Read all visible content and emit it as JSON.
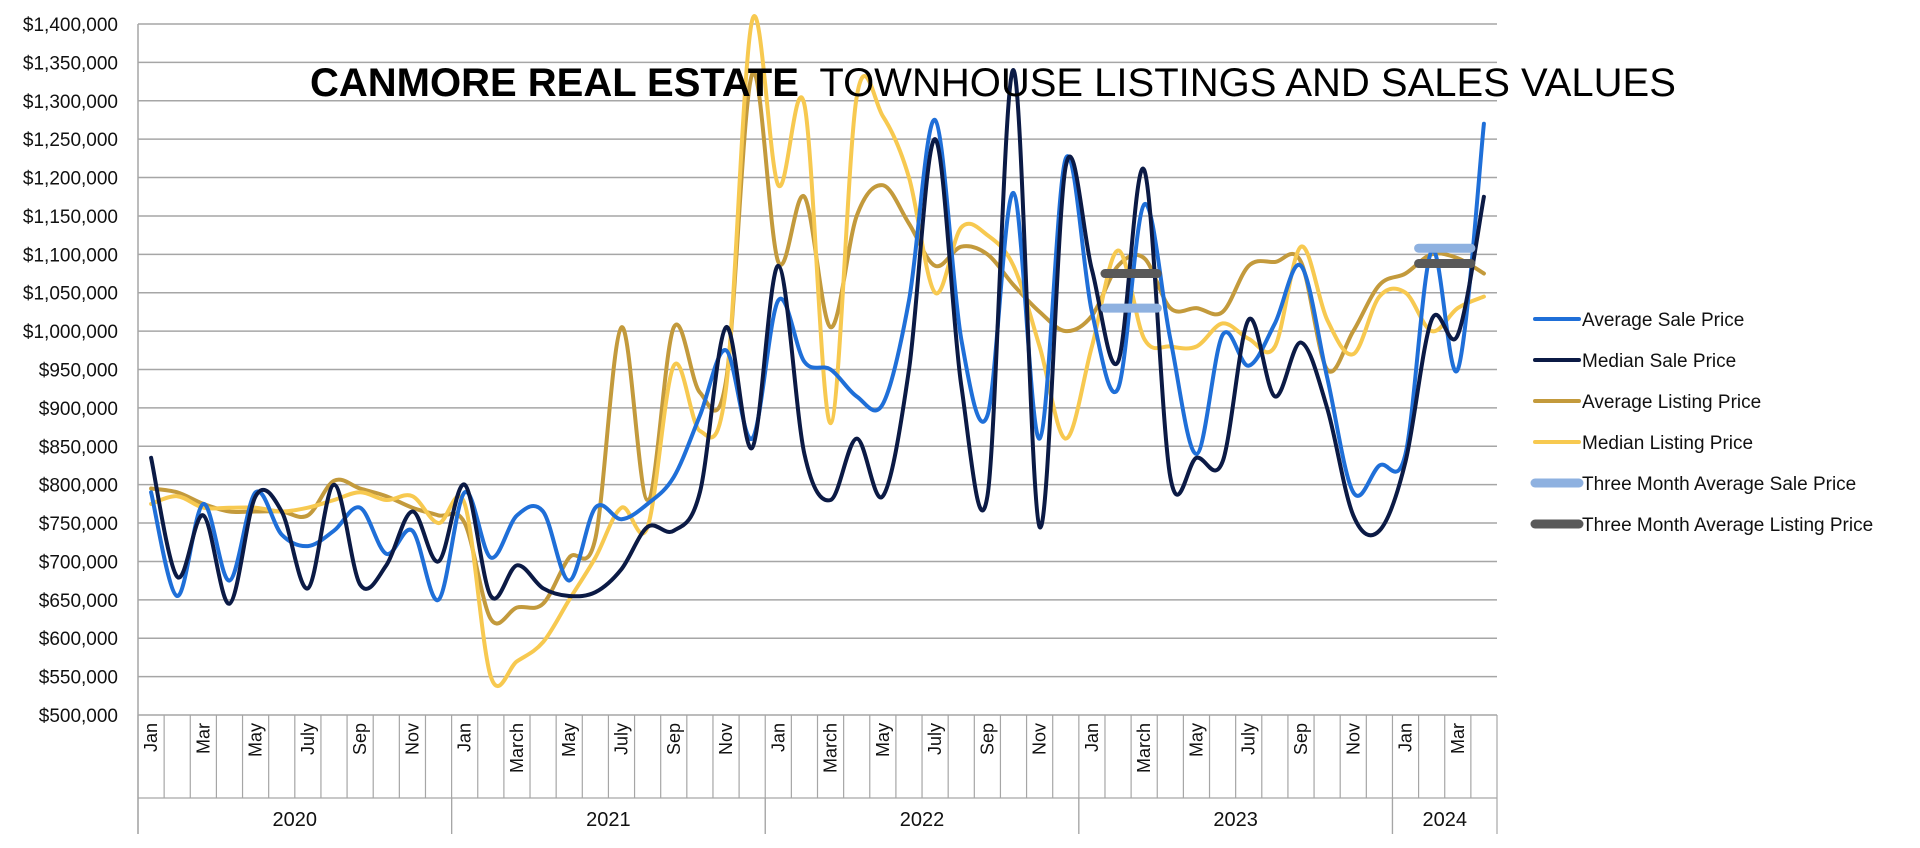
{
  "chart_data": {
    "type": "line",
    "title_bold": "CANMORE REAL ESTATE",
    "title_rest": "TOWNHOUSE LISTINGS AND SALES VALUES",
    "ylim": [
      500000,
      1400000
    ],
    "y_step": 50000,
    "y_tick_labels": [
      "$500,000",
      "$550,000",
      "$600,000",
      "$650,000",
      "$700,000",
      "$750,000",
      "$800,000",
      "$850,000",
      "$900,000",
      "$950,000",
      "$1,000,000",
      "$1,050,000",
      "$1,100,000",
      "$1,150,000",
      "$1,200,000",
      "$1,250,000",
      "$1,300,000",
      "$1,350,000",
      "$1,400,000"
    ],
    "month_count": 52,
    "x_tick_labels": [
      {
        "i": 0,
        "label": "Jan"
      },
      {
        "i": 2,
        "label": "Mar"
      },
      {
        "i": 4,
        "label": "May"
      },
      {
        "i": 6,
        "label": "July"
      },
      {
        "i": 8,
        "label": "Sep"
      },
      {
        "i": 10,
        "label": "Nov"
      },
      {
        "i": 12,
        "label": "Jan"
      },
      {
        "i": 14,
        "label": "March"
      },
      {
        "i": 16,
        "label": "May"
      },
      {
        "i": 18,
        "label": "July"
      },
      {
        "i": 20,
        "label": "Sep"
      },
      {
        "i": 22,
        "label": "Nov"
      },
      {
        "i": 24,
        "label": "Jan"
      },
      {
        "i": 26,
        "label": "March"
      },
      {
        "i": 28,
        "label": "May"
      },
      {
        "i": 30,
        "label": "July"
      },
      {
        "i": 32,
        "label": "Sep"
      },
      {
        "i": 34,
        "label": "Nov"
      },
      {
        "i": 36,
        "label": "Jan"
      },
      {
        "i": 38,
        "label": "March"
      },
      {
        "i": 40,
        "label": "May"
      },
      {
        "i": 42,
        "label": "July"
      },
      {
        "i": 44,
        "label": "Sep"
      },
      {
        "i": 46,
        "label": "Nov"
      },
      {
        "i": 48,
        "label": "Jan"
      },
      {
        "i": 50,
        "label": "Mar"
      }
    ],
    "years": [
      {
        "label": "2020",
        "start": 0,
        "end": 12
      },
      {
        "label": "2021",
        "start": 12,
        "end": 24
      },
      {
        "label": "2022",
        "start": 24,
        "end": 36
      },
      {
        "label": "2023",
        "start": 36,
        "end": 48
      },
      {
        "label": "2024",
        "start": 48,
        "end": 52
      }
    ],
    "series": [
      {
        "name": "Average Sale Price",
        "color": "#1f6fd8",
        "values": [
          790000,
          655000,
          775000,
          675000,
          790000,
          735000,
          720000,
          740000,
          770000,
          710000,
          740000,
          650000,
          790000,
          705000,
          760000,
          765000,
          675000,
          770000,
          755000,
          775000,
          810000,
          890000,
          975000,
          860000,
          1040000,
          960000,
          950000,
          915000,
          905000,
          1040000,
          1275000,
          990000,
          890000,
          1180000,
          860000,
          1225000,
          1025000,
          925000,
          1165000,
          990000,
          840000,
          995000,
          955000,
          1010000,
          1085000,
          940000,
          790000,
          825000,
          840000,
          1105000,
          950000,
          1270000
        ]
      },
      {
        "name": "Median Sale Price",
        "color": "#0b1a45",
        "values": [
          835000,
          680000,
          760000,
          645000,
          785000,
          765000,
          665000,
          800000,
          670000,
          695000,
          765000,
          700000,
          800000,
          655000,
          695000,
          665000,
          655000,
          660000,
          690000,
          745000,
          740000,
          790000,
          1005000,
          848000,
          1085000,
          840000,
          780000,
          860000,
          785000,
          950000,
          1250000,
          930000,
          785000,
          1340000,
          745000,
          1215000,
          1080000,
          960000,
          1210000,
          810000,
          835000,
          830000,
          1015000,
          915000,
          985000,
          900000,
          760000,
          740000,
          830000,
          1015000,
          995000,
          1175000
        ]
      },
      {
        "name": "Average Listing Price",
        "color": "#c39a3c",
        "values": [
          795000,
          790000,
          775000,
          765000,
          765000,
          765000,
          760000,
          805000,
          795000,
          785000,
          770000,
          760000,
          750000,
          625000,
          640000,
          645000,
          705000,
          730000,
          1005000,
          780000,
          1005000,
          920000,
          935000,
          1335000,
          1090000,
          1175000,
          1005000,
          1150000,
          1190000,
          1140000,
          1085000,
          1110000,
          1100000,
          1060000,
          1025000,
          1000000,
          1020000,
          1085000,
          1095000,
          1030000,
          1030000,
          1025000,
          1085000,
          1090000,
          1090000,
          950000,
          1000000,
          1060000,
          1075000,
          1100000,
          1095000,
          1075000
        ]
      },
      {
        "name": "Median Listing Price",
        "color": "#f7c950",
        "values": [
          775000,
          785000,
          770000,
          770000,
          770000,
          765000,
          770000,
          780000,
          790000,
          780000,
          785000,
          750000,
          775000,
          550000,
          570000,
          595000,
          650000,
          705000,
          770000,
          745000,
          955000,
          870000,
          925000,
          1405000,
          1190000,
          1295000,
          880000,
          1305000,
          1280000,
          1200000,
          1050000,
          1135000,
          1125000,
          1085000,
          980000,
          860000,
          980000,
          1105000,
          990000,
          980000,
          980000,
          1010000,
          990000,
          980000,
          1110000,
          1015000,
          970000,
          1045000,
          1050000,
          1000000,
          1030000,
          1045000
        ]
      }
    ],
    "three_month_averages": [
      {
        "name": "Three Month Average Sale Price",
        "color": "#8eb1e0",
        "segments": [
          {
            "start": 36.5,
            "end": 38.5,
            "value": 1030000
          },
          {
            "start": 48.5,
            "end": 50.5,
            "value": 1108000
          }
        ]
      },
      {
        "name": "Three Month Average Listing Price",
        "color": "#595959",
        "segments": [
          {
            "start": 36.5,
            "end": 38.5,
            "value": 1075000
          },
          {
            "start": 48.5,
            "end": 50.5,
            "value": 1088000
          }
        ]
      }
    ],
    "legend_position": "right"
  }
}
